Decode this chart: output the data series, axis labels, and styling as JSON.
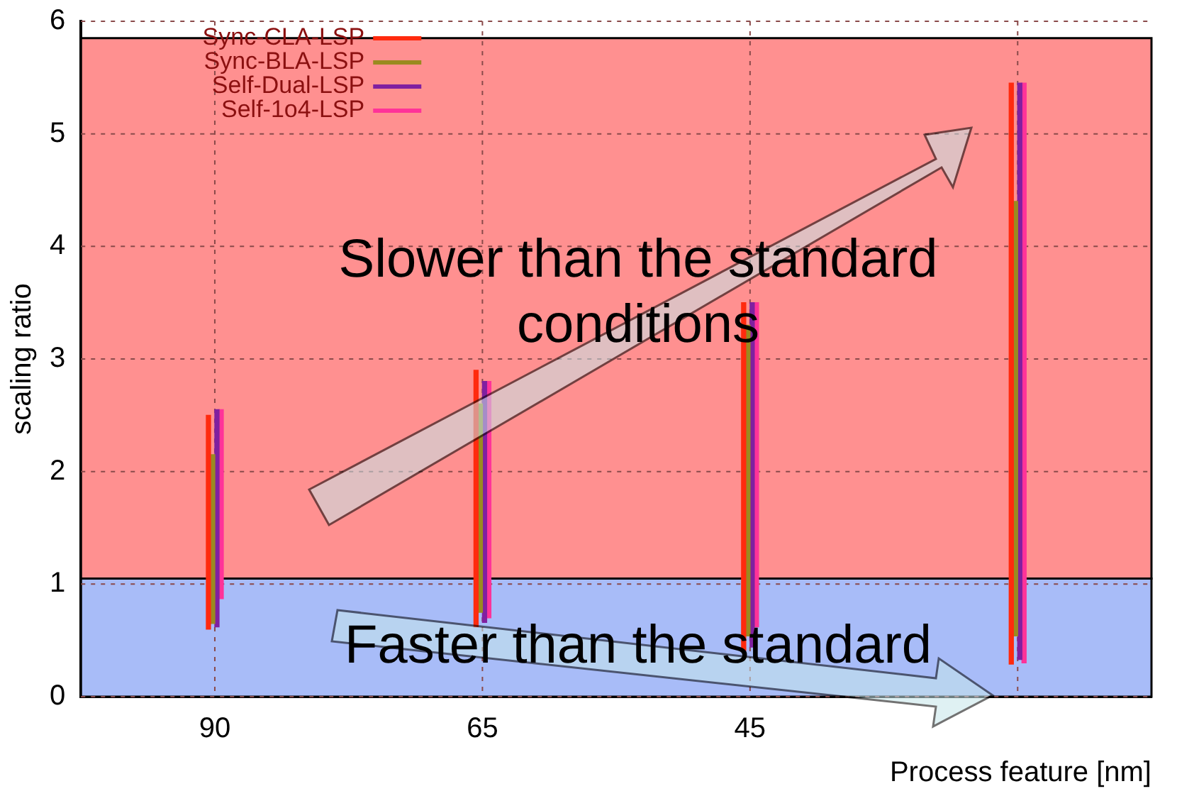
{
  "chart_data": {
    "type": "bar",
    "xlabel": "Process feature [nm]",
    "ylabel": "scaling ratio",
    "categories": [
      "90",
      "65",
      "45",
      null
    ],
    "series": [
      {
        "name": "Sync-CLA-LSP",
        "color": "#ff2a0e",
        "base": [
          0.6,
          0.62,
          0.41,
          0.29
        ],
        "values": [
          1.9,
          2.28,
          3.09,
          5.16
        ]
      },
      {
        "name": "Sync-BLA-LSP",
        "color": "#9a8a20",
        "base": [
          0.65,
          0.75,
          0.54,
          0.54
        ],
        "values": [
          1.5,
          1.85,
          2.76,
          3.86
        ]
      },
      {
        "name": "Self-Dual-LSP",
        "color": "#8020a0",
        "base": [
          0.62,
          0.66,
          0.44,
          0.33
        ],
        "values": [
          1.93,
          2.14,
          3.06,
          5.12
        ]
      },
      {
        "name": "Self-1o4-LSP",
        "color": "#ff3399",
        "base": [
          0.87,
          0.7,
          0.62,
          0.3
        ],
        "values": [
          1.68,
          2.1,
          2.88,
          5.15
        ]
      }
    ],
    "ylim": [
      0,
      6
    ],
    "yticks": [
      0,
      1,
      2,
      3,
      4,
      5,
      6
    ],
    "grid": true,
    "legend": "top left",
    "bands": [
      {
        "axis": "y",
        "from": 1.05,
        "to": 5.85,
        "color": "#ff9090"
      },
      {
        "axis": "y",
        "from": 0,
        "to": 1.05,
        "color": "#a8bcf8"
      }
    ],
    "annotations": [
      "Slower  than the standard conditions",
      "Faster than the standard"
    ]
  }
}
